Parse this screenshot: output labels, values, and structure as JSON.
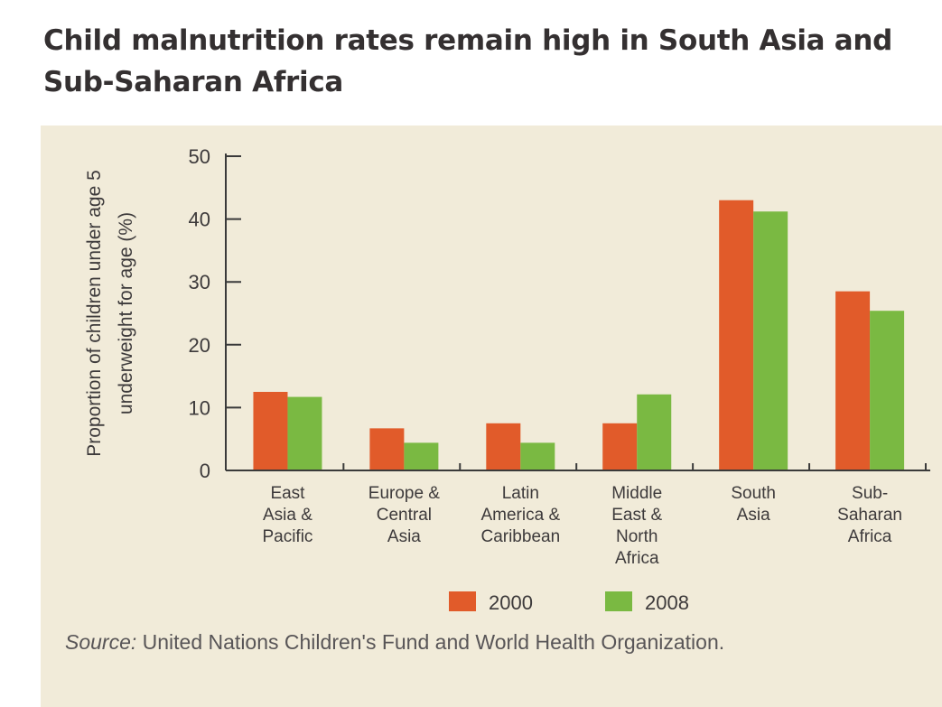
{
  "title": "Child malnutrition rates remain high in South Asia and Sub-Saharan Africa",
  "source": {
    "label": "Source:",
    "text": " United Nations Children's Fund and World Health Organization."
  },
  "colors": {
    "series_2000": "#e15b2a",
    "series_2008": "#7ab942",
    "panel": "#f1ebd9",
    "axis": "#3a3a3a"
  },
  "chart_data": {
    "type": "bar",
    "title": "Child malnutrition rates remain high in South Asia and Sub-Saharan Africa",
    "ylabel_lines": [
      "Proportion of children under age 5",
      "underweight for age (%)"
    ],
    "xlabel": "",
    "ylim": [
      0,
      50
    ],
    "yticks": [
      0,
      10,
      20,
      30,
      40,
      50
    ],
    "grid": false,
    "legend_position": "bottom",
    "categories": [
      [
        "East",
        "Asia &",
        "Pacific"
      ],
      [
        "Europe &",
        "Central",
        "Asia"
      ],
      [
        "Latin",
        "America &",
        "Caribbean"
      ],
      [
        "Middle",
        "East &",
        "North",
        "Africa"
      ],
      [
        "South",
        "Asia"
      ],
      [
        "Sub-",
        "Saharan",
        "Africa"
      ]
    ],
    "series": [
      {
        "name": "2000",
        "values": [
          12.5,
          6.7,
          7.5,
          7.5,
          43.0,
          28.5
        ]
      },
      {
        "name": "2008",
        "values": [
          11.7,
          4.4,
          4.4,
          12.1,
          41.2,
          25.4
        ]
      }
    ]
  }
}
